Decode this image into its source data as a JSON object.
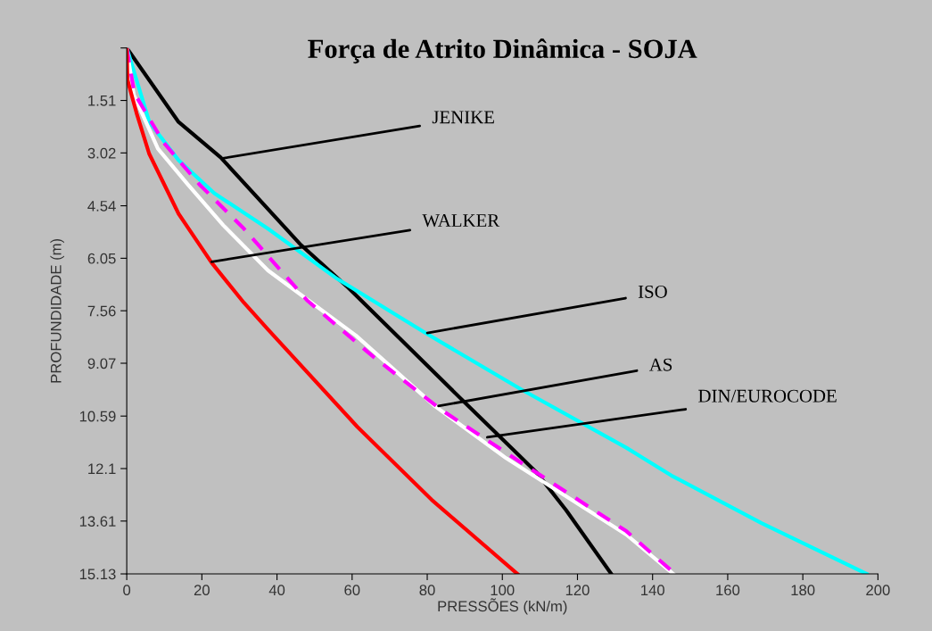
{
  "chart_data": {
    "type": "line",
    "title": "Força de Atrito Dinâmica - SOJA",
    "xlabel": "PRESSÕES (kN/m)",
    "ylabel": "PROFUNDIDADE (m)",
    "xlim": [
      0,
      200
    ],
    "xticks": [
      0,
      20,
      40,
      60,
      80,
      100,
      120,
      140,
      160,
      180,
      200
    ],
    "ylim": [
      15.13,
      0
    ],
    "yticks": [
      {
        "value": 0,
        "label": null
      },
      1.51,
      3.02,
      4.54,
      6.05,
      7.56,
      9.07,
      10.59,
      12.1,
      13.61,
      15.13
    ],
    "grid": false,
    "legend": false,
    "series": [
      {
        "color": "#000000",
        "x": [
          0,
          13.8,
          25,
          46.4,
          59,
          90,
          109,
          117,
          129
        ],
        "values": [
          0,
          2.13,
          3.15,
          5.67,
          6.9,
          10.2,
          12.2,
          13.3,
          15.13
        ]
      },
      {
        "color": "#00ffff",
        "x": [
          0,
          6,
          13.8,
          23.3,
          37.6,
          56,
          80,
          105,
          133,
          145,
          169,
          197
        ],
        "values": [
          0,
          2.13,
          3.23,
          4.18,
          5.2,
          6.64,
          8.23,
          9.82,
          11.5,
          12.3,
          13.67,
          15.13
        ]
      },
      {
        "color": "#ffffff",
        "x": [
          0,
          1.9,
          8.3,
          16.2,
          25.7,
          37.6,
          61,
          82,
          101,
          133,
          145.5
        ],
        "values": [
          0,
          1.36,
          2.9,
          3.92,
          5.1,
          6.4,
          8.27,
          10.3,
          11.8,
          14.0,
          15.13
        ]
      },
      {
        "color": "#ff00ff",
        "line_style": "dashed",
        "x": [
          0,
          2,
          9.8,
          19.3,
          31.2,
          48,
          65.5,
          83.6,
          106,
          133,
          146
        ],
        "values": [
          0,
          1.3,
          2.72,
          3.92,
          5.2,
          7.26,
          8.87,
          10.4,
          12.0,
          13.9,
          15.13
        ]
      },
      {
        "color": "#ff0000",
        "x": [
          0,
          0.2,
          2.6,
          6,
          13.8,
          22.6,
          31.2,
          37.6,
          61.4,
          81.2,
          104
        ],
        "values": [
          0,
          0.92,
          1.87,
          3.05,
          4.77,
          6.18,
          7.33,
          8.1,
          10.9,
          13.0,
          15.13
        ]
      }
    ],
    "annotations": [
      {
        "text": "JENIKE",
        "x": 25.2,
        "y": 3.18
      },
      {
        "text": "WALKER",
        "x": 22.6,
        "y": 6.15
      },
      {
        "text": "ISO",
        "x": 80,
        "y": 8.2
      },
      {
        "text": "AS",
        "x": 83,
        "y": 10.3
      },
      {
        "text": "DIN/EUROCODE",
        "x": 96,
        "y": 11.2
      }
    ]
  }
}
